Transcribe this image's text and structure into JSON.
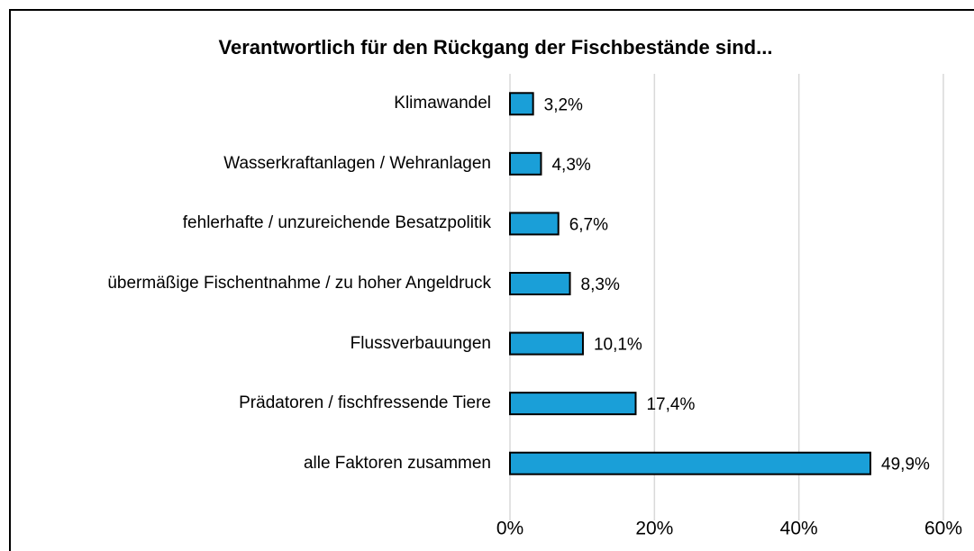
{
  "chart_data": {
    "type": "bar",
    "orientation": "horizontal",
    "title": "Verantwortlich für den Rückgang der Fischbestände sind...",
    "categories": [
      "Klimawandel",
      "Wasserkraftanlagen / Wehranlagen",
      "fehlerhafte / unzureichende Besatzpolitik",
      "übermäßige Fischentnahme / zu hoher Angeldruck",
      "Flussverbauungen",
      "Prädatoren / fischfressende Tiere",
      "alle Faktoren zusammen"
    ],
    "values": [
      3.2,
      4.3,
      6.7,
      8.3,
      10.1,
      17.4,
      49.9
    ],
    "value_labels": [
      "3,2%",
      "4,3%",
      "6,7%",
      "8,3%",
      "10,1%",
      "17,4%",
      "49,9%"
    ],
    "color": "#1a9fd8",
    "xlim": [
      0,
      60
    ],
    "xticks": [
      {
        "value": 0,
        "label": "0%"
      },
      {
        "value": 20,
        "label": "20%"
      },
      {
        "value": 40,
        "label": "40%"
      },
      {
        "value": 60,
        "label": "60%"
      }
    ],
    "grid": true
  }
}
